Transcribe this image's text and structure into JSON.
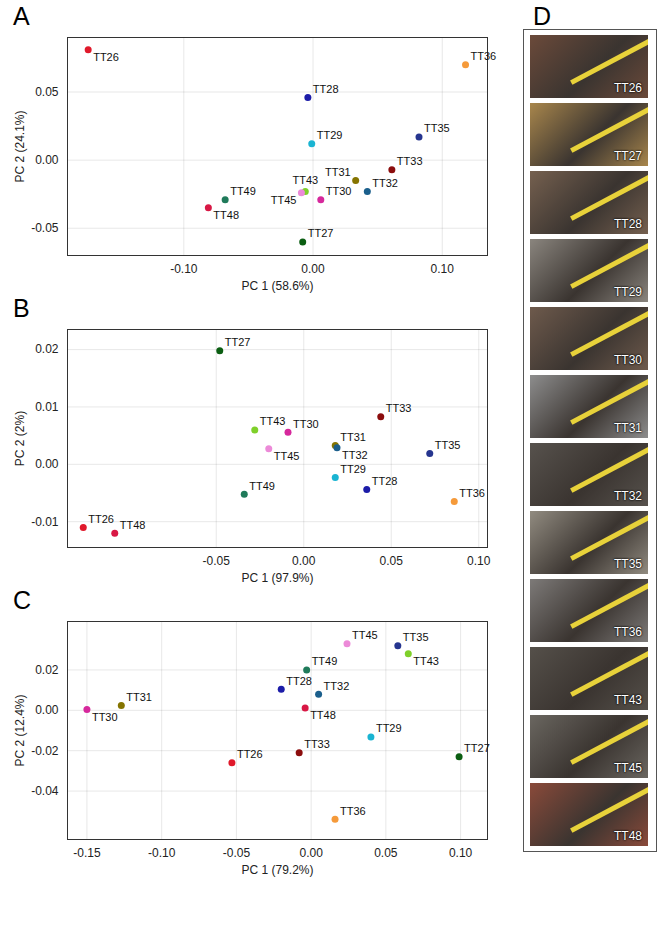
{
  "chart_data": [
    {
      "type": "scatter",
      "panel": "A",
      "x_label": "PC 1 (58.6%)",
      "y_label": "PC 2 (24.1%)",
      "grid": true,
      "xlim": [
        -0.19,
        0.135
      ],
      "ylim": [
        -0.07,
        0.09
      ],
      "xticks": [
        {
          "value": -0.1,
          "label": "-0.10"
        },
        {
          "value": 0,
          "label": "0.00"
        },
        {
          "value": 0.1,
          "label": "0.10"
        }
      ],
      "yticks": [
        -0.05,
        {
          "value": 0,
          "label": "0.00"
        },
        0.05
      ],
      "labels": [
        "TT26",
        "TT27",
        "TT28",
        "TT29",
        "TT30",
        "TT31",
        "TT32",
        "TT33",
        "TT35",
        "TT36",
        "TT43",
        "TT45",
        "TT48",
        "TT49"
      ],
      "x": [
        -0.174,
        -0.008,
        -0.004,
        -0.001,
        0.006,
        0.033,
        0.042,
        0.061,
        0.082,
        0.118,
        -0.006,
        -0.009,
        -0.081,
        -0.068
      ],
      "y": [
        0.081,
        -0.06,
        0.046,
        0.012,
        -0.029,
        -0.015,
        -0.023,
        -0.007,
        0.017,
        0.07,
        -0.023,
        -0.024,
        -0.035,
        -0.029
      ],
      "colors": [
        "#e0192b",
        "#0b5e12",
        "#1c1ca8",
        "#1ab4d2",
        "#d6289c",
        "#857400",
        "#1b5f8c",
        "#8b0d0d",
        "#26358f",
        "#f59a3a",
        "#7fd02a",
        "#ec8ad8",
        "#d81845",
        "#1f7a5a"
      ]
    },
    {
      "type": "scatter",
      "panel": "B",
      "x_label": "PC 1 (97.9%)",
      "y_label": "PC 2 (2%)",
      "grid": true,
      "xlim": [
        -0.135,
        0.105
      ],
      "ylim": [
        -0.0145,
        0.0235
      ],
      "xticks": [
        -0.05,
        {
          "value": 0,
          "label": "0.00"
        },
        0.05,
        {
          "value": 0.1,
          "label": "0.10"
        }
      ],
      "yticks": [
        -0.01,
        {
          "value": 0,
          "label": "0.00"
        },
        0.01,
        0.02
      ],
      "labels": [
        "TT26",
        "TT27",
        "TT28",
        "TT29",
        "TT30",
        "TT31",
        "TT32",
        "TT33",
        "TT35",
        "TT36",
        "TT43",
        "TT45",
        "TT48",
        "TT49"
      ],
      "x": [
        -0.126,
        -0.048,
        0.036,
        0.018,
        -0.009,
        0.018,
        0.019,
        0.044,
        0.072,
        0.086,
        -0.028,
        -0.02,
        -0.108,
        -0.034
      ],
      "y": [
        -0.011,
        0.0198,
        -0.0044,
        -0.0023,
        0.0056,
        0.0033,
        0.0029,
        0.0083,
        0.0019,
        -0.0065,
        0.006,
        0.0027,
        -0.012,
        -0.0052
      ],
      "colors": [
        "#e0192b",
        "#0b5e12",
        "#1c1ca8",
        "#1ab4d2",
        "#d6289c",
        "#857400",
        "#1b5f8c",
        "#8b0d0d",
        "#26358f",
        "#f59a3a",
        "#7fd02a",
        "#ec8ad8",
        "#d81845",
        "#1f7a5a"
      ]
    },
    {
      "type": "scatter",
      "panel": "C",
      "x_label": "PC 1 (79.2%)",
      "y_label": "PC 2 (12.4%)",
      "grid": true,
      "xlim": [
        -0.163,
        0.118
      ],
      "ylim": [
        -0.064,
        0.044
      ],
      "xticks": [
        -0.15,
        {
          "value": -0.1,
          "label": "-0.10"
        },
        -0.05,
        {
          "value": 0,
          "label": "0.00"
        },
        0.05,
        {
          "value": 0.1,
          "label": "0.10"
        }
      ],
      "yticks": [
        -0.04,
        -0.02,
        {
          "value": 0,
          "label": "0.00"
        },
        0.02
      ],
      "labels": [
        "TT26",
        "TT27",
        "TT28",
        "TT29",
        "TT30",
        "TT31",
        "TT32",
        "TT33",
        "TT35",
        "TT36",
        "TT43",
        "TT45",
        "TT48",
        "TT49"
      ],
      "x": [
        -0.053,
        0.099,
        -0.02,
        0.04,
        -0.15,
        -0.127,
        0.005,
        -0.008,
        0.058,
        0.016,
        0.065,
        0.024,
        -0.004,
        -0.003
      ],
      "y": [
        -0.026,
        -0.023,
        0.0104,
        -0.0132,
        0.0004,
        0.0024,
        0.008,
        -0.021,
        0.032,
        -0.054,
        0.028,
        0.033,
        0.0012,
        0.02
      ],
      "colors": [
        "#e0192b",
        "#0b5e12",
        "#1c1ca8",
        "#1ab4d2",
        "#d6289c",
        "#857400",
        "#1b5f8c",
        "#8b0d0d",
        "#26358f",
        "#f59a3a",
        "#7fd02a",
        "#ec8ad8",
        "#d81845",
        "#1f7a5a"
      ]
    }
  ],
  "photo_panel": {
    "panel": "D",
    "captions": [
      "TT26",
      "TT27",
      "TT28",
      "TT29",
      "TT30",
      "TT31",
      "TT32",
      "TT35",
      "TT36",
      "TT43",
      "TT45",
      "TT48"
    ]
  }
}
